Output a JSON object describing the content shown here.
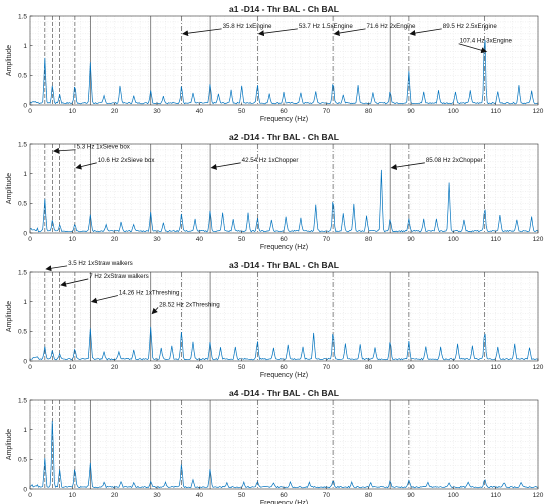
{
  "chart_data": [
    {
      "type": "line",
      "title": "a1 -D14 - Thr BAL - Ch BAL",
      "xlabel": "Frequency (Hz)",
      "ylabel": "Amplitude",
      "xlim": [
        0,
        120
      ],
      "ylim": [
        0,
        1.5
      ],
      "xticks": [
        "0",
        "10",
        "20",
        "30",
        "40",
        "50",
        "60",
        "70",
        "80",
        "90",
        "100",
        "110",
        "120"
      ],
      "yticks": [
        "0",
        "0.5",
        "1",
        "1.5"
      ],
      "grid": true,
      "vlines": [
        {
          "x": 3.5,
          "style": "dashed"
        },
        {
          "x": 5.3,
          "style": "dashed"
        },
        {
          "x": 7.0,
          "style": "dashed"
        },
        {
          "x": 10.6,
          "style": "dashed"
        },
        {
          "x": 14.26,
          "style": "solid"
        },
        {
          "x": 28.52,
          "style": "solid"
        },
        {
          "x": 35.8,
          "style": "dashdot"
        },
        {
          "x": 42.54,
          "style": "solid"
        },
        {
          "x": 53.7,
          "style": "dashdot"
        },
        {
          "x": 71.6,
          "style": "dashdot"
        },
        {
          "x": 85.08,
          "style": "solid"
        },
        {
          "x": 89.5,
          "style": "dashdot"
        },
        {
          "x": 107.4,
          "style": "dashdot"
        }
      ],
      "annotations": [
        {
          "text": "35.8 Hz 1xEngine",
          "x": 35.8,
          "y": 1.2,
          "tx": 45.5,
          "ty": 1.3
        },
        {
          "text": "53.7 Hz 1.5xEngine",
          "x": 53.7,
          "y": 1.2,
          "tx": 63.5,
          "ty": 1.3
        },
        {
          "text": "71.6 Hz 2xEngine",
          "x": 71.6,
          "y": 1.2,
          "tx": 79.5,
          "ty": 1.3
        },
        {
          "text": "89.5 Hz 2.5xEngine",
          "x": 89.5,
          "y": 1.2,
          "tx": 97.5,
          "ty": 1.3
        },
        {
          "text": "107.4 Hz 3xEngine",
          "x": 107.4,
          "y": 0.9,
          "tx": 101.5,
          "ty": 1.05
        }
      ],
      "peaks": [
        [
          3.5,
          0.75
        ],
        [
          5.3,
          0.3
        ],
        [
          7.0,
          0.15
        ],
        [
          10.6,
          0.3
        ],
        [
          14.26,
          0.68
        ],
        [
          17.5,
          0.12
        ],
        [
          21.3,
          0.3
        ],
        [
          24.5,
          0.12
        ],
        [
          28.52,
          0.22
        ],
        [
          31.5,
          0.12
        ],
        [
          35.8,
          0.3
        ],
        [
          38.5,
          0.18
        ],
        [
          42.54,
          0.32
        ],
        [
          44.5,
          0.15
        ],
        [
          47.5,
          0.22
        ],
        [
          50.0,
          0.3
        ],
        [
          53.7,
          0.32
        ],
        [
          56.5,
          0.15
        ],
        [
          60.0,
          0.18
        ],
        [
          64.0,
          0.18
        ],
        [
          67.5,
          0.2
        ],
        [
          71.6,
          0.35
        ],
        [
          74.0,
          0.15
        ],
        [
          77.5,
          0.3
        ],
        [
          81.0,
          0.18
        ],
        [
          85.08,
          0.2
        ],
        [
          89.5,
          0.55
        ],
        [
          93.0,
          0.18
        ],
        [
          96.5,
          0.22
        ],
        [
          100.5,
          0.2
        ],
        [
          104.0,
          0.22
        ],
        [
          107.4,
          1.22
        ],
        [
          110.5,
          0.2
        ],
        [
          115.5,
          0.3
        ],
        [
          118.5,
          0.2
        ]
      ]
    },
    {
      "type": "line",
      "title": "a2 -D14 - Thr BAL - Ch BAL",
      "xlabel": "Frequency (Hz)",
      "ylabel": "Amplitude",
      "xlim": [
        0,
        120
      ],
      "ylim": [
        0,
        1.5
      ],
      "xticks": [
        "0",
        "10",
        "20",
        "30",
        "40",
        "50",
        "60",
        "70",
        "80",
        "90",
        "100",
        "110",
        "120"
      ],
      "yticks": [
        "0",
        "0.5",
        "1",
        "1.5"
      ],
      "grid": true,
      "vlines": [
        {
          "x": 3.5,
          "style": "dashed"
        },
        {
          "x": 5.3,
          "style": "dashed"
        },
        {
          "x": 7.0,
          "style": "dashed"
        },
        {
          "x": 10.6,
          "style": "dashed"
        },
        {
          "x": 14.26,
          "style": "solid"
        },
        {
          "x": 28.52,
          "style": "solid"
        },
        {
          "x": 35.8,
          "style": "dashdot"
        },
        {
          "x": 42.54,
          "style": "solid"
        },
        {
          "x": 53.7,
          "style": "dashdot"
        },
        {
          "x": 71.6,
          "style": "dashdot"
        },
        {
          "x": 85.08,
          "style": "solid"
        },
        {
          "x": 89.5,
          "style": "dashdot"
        },
        {
          "x": 107.4,
          "style": "dashdot"
        }
      ],
      "annotations": [
        {
          "text": "5.3 Hz 1xSieve box",
          "x": 5.3,
          "y": 1.38,
          "tx": 11.0,
          "ty": 1.42
        },
        {
          "text": "10.6 Hz 2xSieve box",
          "x": 10.6,
          "y": 1.1,
          "tx": 16.0,
          "ty": 1.2
        },
        {
          "text": "42.54 Hz 1xChopper",
          "x": 42.54,
          "y": 1.1,
          "tx": 50.0,
          "ty": 1.2
        },
        {
          "text": "85.08 Hz 2xChopper",
          "x": 85.08,
          "y": 1.1,
          "tx": 93.5,
          "ty": 1.2
        }
      ],
      "peaks": [
        [
          3.5,
          0.55
        ],
        [
          5.3,
          0.18
        ],
        [
          7.0,
          0.1
        ],
        [
          10.6,
          0.12
        ],
        [
          14.26,
          0.28
        ],
        [
          18.0,
          0.1
        ],
        [
          21.5,
          0.15
        ],
        [
          24.5,
          0.12
        ],
        [
          28.52,
          0.32
        ],
        [
          31.5,
          0.15
        ],
        [
          35.8,
          0.3
        ],
        [
          39.0,
          0.2
        ],
        [
          42.54,
          0.35
        ],
        [
          45.5,
          0.32
        ],
        [
          48.0,
          0.2
        ],
        [
          51.5,
          0.3
        ],
        [
          53.7,
          0.22
        ],
        [
          57.0,
          0.2
        ],
        [
          60.5,
          0.25
        ],
        [
          64.0,
          0.22
        ],
        [
          67.5,
          0.45
        ],
        [
          71.6,
          0.55
        ],
        [
          74.0,
          0.3
        ],
        [
          76.5,
          0.45
        ],
        [
          79.5,
          0.25
        ],
        [
          83.0,
          1.02
        ],
        [
          85.08,
          0.2
        ],
        [
          89.5,
          0.2
        ],
        [
          93.0,
          0.2
        ],
        [
          96.0,
          0.2
        ],
        [
          99.0,
          0.82
        ],
        [
          102.5,
          0.2
        ],
        [
          107.4,
          0.4
        ],
        [
          111.0,
          0.28
        ],
        [
          115.0,
          0.2
        ],
        [
          118.5,
          0.25
        ]
      ]
    },
    {
      "type": "line",
      "title": "a3 -D14 - Thr BAL - Ch BAL",
      "xlabel": "Frequency (Hz)",
      "ylabel": "Amplitude",
      "xlim": [
        0,
        120
      ],
      "ylim": [
        0,
        1.5
      ],
      "xticks": [
        "0",
        "10",
        "20",
        "30",
        "40",
        "50",
        "60",
        "70",
        "80",
        "90",
        "100",
        "110",
        "120"
      ],
      "yticks": [
        "0",
        "0.5",
        "1",
        "1.5"
      ],
      "grid": true,
      "vlines": [
        {
          "x": 3.5,
          "style": "dashed"
        },
        {
          "x": 5.3,
          "style": "dashed"
        },
        {
          "x": 7.0,
          "style": "dashed"
        },
        {
          "x": 10.6,
          "style": "dashed"
        },
        {
          "x": 14.26,
          "style": "solid"
        },
        {
          "x": 28.52,
          "style": "solid"
        },
        {
          "x": 35.8,
          "style": "dashdot"
        },
        {
          "x": 42.54,
          "style": "solid"
        },
        {
          "x": 53.7,
          "style": "dashdot"
        },
        {
          "x": 71.6,
          "style": "dashdot"
        },
        {
          "x": 85.08,
          "style": "solid"
        },
        {
          "x": 89.5,
          "style": "dashdot"
        },
        {
          "x": 107.4,
          "style": "dashdot"
        }
      ],
      "annotations": [
        {
          "text": "3.5 Hz 1xStraw walkers",
          "x": 3.5,
          "y": 1.55,
          "tx": 9.0,
          "ty": 1.62
        },
        {
          "text": "7 Hz 2xStraw walkers",
          "x": 7.0,
          "y": 1.28,
          "tx": 14.0,
          "ty": 1.4
        },
        {
          "text": "14.26 Hz 1xThreshing",
          "x": 14.26,
          "y": 1.0,
          "tx": 21.0,
          "ty": 1.12
        },
        {
          "text": "28.52 Hz 2xThreshing",
          "x": 28.52,
          "y": 0.8,
          "tx": 30.5,
          "ty": 0.92
        }
      ],
      "peaks": [
        [
          3.5,
          0.2
        ],
        [
          5.3,
          0.15
        ],
        [
          7.0,
          0.1
        ],
        [
          10.6,
          0.18
        ],
        [
          14.26,
          0.52
        ],
        [
          17.5,
          0.12
        ],
        [
          21.0,
          0.12
        ],
        [
          24.5,
          0.15
        ],
        [
          28.52,
          0.55
        ],
        [
          31.0,
          0.2
        ],
        [
          33.5,
          0.22
        ],
        [
          35.8,
          0.48
        ],
        [
          38.5,
          0.28
        ],
        [
          42.54,
          0.3
        ],
        [
          45.0,
          0.2
        ],
        [
          48.5,
          0.2
        ],
        [
          53.7,
          0.3
        ],
        [
          57.5,
          0.2
        ],
        [
          61.0,
          0.25
        ],
        [
          64.5,
          0.2
        ],
        [
          67.0,
          0.45
        ],
        [
          71.6,
          0.48
        ],
        [
          74.5,
          0.25
        ],
        [
          78.0,
          0.25
        ],
        [
          81.5,
          0.2
        ],
        [
          85.08,
          0.3
        ],
        [
          89.5,
          0.3
        ],
        [
          93.5,
          0.22
        ],
        [
          97.0,
          0.2
        ],
        [
          101.0,
          0.25
        ],
        [
          104.5,
          0.22
        ],
        [
          107.4,
          0.48
        ],
        [
          110.5,
          0.2
        ],
        [
          114.5,
          0.25
        ],
        [
          118.0,
          0.2
        ]
      ]
    },
    {
      "type": "line",
      "title": "a4 -D14 - Thr BAL - Ch BAL",
      "xlabel": "Frequency (Hz)",
      "ylabel": "Amplitude",
      "xlim": [
        0,
        120
      ],
      "ylim": [
        0,
        1.5
      ],
      "xticks": [
        "0",
        "10",
        "20",
        "30",
        "40",
        "50",
        "60",
        "70",
        "80",
        "90",
        "100",
        "110",
        "120"
      ],
      "yticks": [
        "0",
        "0.5",
        "1",
        "1.5"
      ],
      "grid": true,
      "vlines": [
        {
          "x": 3.5,
          "style": "dashed"
        },
        {
          "x": 5.3,
          "style": "dashed"
        },
        {
          "x": 7.0,
          "style": "dashed"
        },
        {
          "x": 10.6,
          "style": "dashed"
        },
        {
          "x": 14.26,
          "style": "solid"
        },
        {
          "x": 28.52,
          "style": "solid"
        },
        {
          "x": 35.8,
          "style": "dashdot"
        },
        {
          "x": 42.54,
          "style": "solid"
        },
        {
          "x": 53.7,
          "style": "dashdot"
        },
        {
          "x": 71.6,
          "style": "dashdot"
        },
        {
          "x": 85.08,
          "style": "solid"
        },
        {
          "x": 89.5,
          "style": "dashdot"
        },
        {
          "x": 107.4,
          "style": "dashdot"
        }
      ],
      "annotations": [],
      "peaks": [
        [
          3.5,
          0.5
        ],
        [
          5.3,
          1.15
        ],
        [
          7.0,
          0.3
        ],
        [
          10.6,
          0.32
        ],
        [
          14.26,
          0.4
        ],
        [
          17.5,
          0.08
        ],
        [
          21.5,
          0.1
        ],
        [
          24.5,
          0.08
        ],
        [
          28.52,
          0.1
        ],
        [
          32.0,
          0.08
        ],
        [
          35.8,
          0.4
        ],
        [
          38.5,
          0.12
        ],
        [
          42.54,
          0.32
        ],
        [
          46.5,
          0.08
        ],
        [
          50.5,
          0.08
        ],
        [
          53.7,
          0.1
        ],
        [
          57.5,
          0.08
        ],
        [
          61.5,
          0.08
        ],
        [
          66.0,
          0.08
        ],
        [
          71.6,
          0.12
        ],
        [
          76.0,
          0.08
        ],
        [
          80.5,
          0.08
        ],
        [
          85.08,
          0.1
        ],
        [
          89.5,
          0.12
        ],
        [
          94.0,
          0.08
        ],
        [
          99.0,
          0.08
        ],
        [
          103.5,
          0.08
        ],
        [
          107.4,
          0.15
        ],
        [
          112.0,
          0.08
        ],
        [
          116.0,
          0.08
        ]
      ]
    }
  ]
}
